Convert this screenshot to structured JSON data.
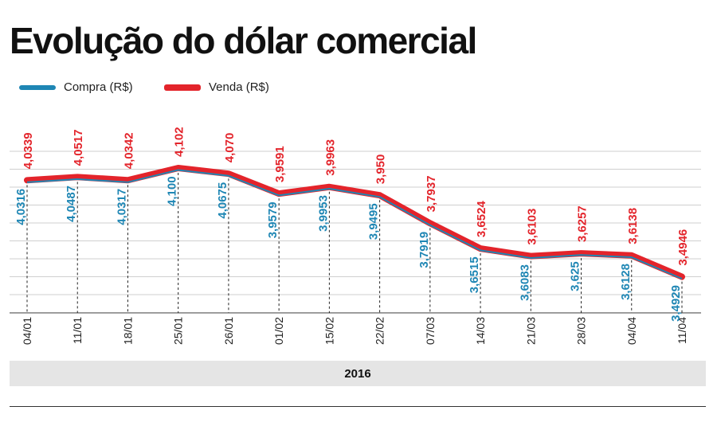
{
  "chart_data": {
    "type": "line",
    "title": "Evolução do dólar comercial",
    "x": [
      "04/01",
      "11/01",
      "18/01",
      "25/01",
      "26/01",
      "01/02",
      "15/02",
      "22/02",
      "07/03",
      "14/03",
      "21/03",
      "28/03",
      "04/04",
      "11/04"
    ],
    "series": [
      {
        "name": "Compra (R$)",
        "color": "#1e86b4",
        "values": [
          4.0316,
          4.0487,
          4.0317,
          4.1,
          4.0675,
          3.9579,
          3.9953,
          3.9495,
          3.7919,
          3.6515,
          3.6083,
          3.625,
          3.6128,
          3.4929
        ],
        "labels": [
          "4,0316",
          "4,0487",
          "4,0317",
          "4,100",
          "4,0675",
          "3,9579",
          "3,9953",
          "3,9495",
          "3,7919",
          "3,6515",
          "3,6083",
          "3,625",
          "3,6128",
          "3,4929"
        ]
      },
      {
        "name": "Venda (R$)",
        "color": "#e3242b",
        "values": [
          4.0339,
          4.0517,
          4.0342,
          4.102,
          4.07,
          3.9591,
          3.9963,
          3.95,
          3.7937,
          3.6524,
          3.6103,
          3.6257,
          3.6138,
          3.4946
        ],
        "labels": [
          "4,0339",
          "4,0517",
          "4,0342",
          "4,102",
          "4,070",
          "3,9591",
          "3,9963",
          "3,950",
          "3,7937",
          "3,6524",
          "3,6103",
          "3,6257",
          "3,6138",
          "3,4946"
        ]
      }
    ],
    "x_group_label": "2016",
    "grid": true,
    "legend": "top-left"
  }
}
